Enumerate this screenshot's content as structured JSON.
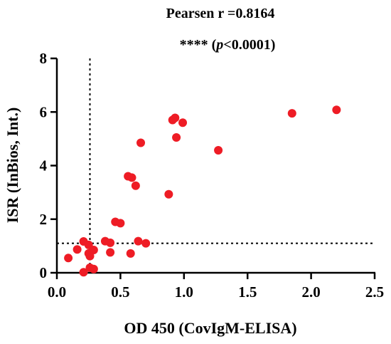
{
  "chart_data": {
    "type": "scatter",
    "title_line1": "Pearsen  r =0.8164",
    "title_line2_stars": "**** (",
    "title_line2_p": "p",
    "title_line2_rest": "<0.0001)",
    "xlabel": "OD 450 (CovIgM-ELISA)",
    "ylabel": "ISR (InBios, Int.)",
    "xlim": [
      0,
      2.5
    ],
    "ylim": [
      0,
      8
    ],
    "xticks": [
      0,
      0.5,
      1,
      1.5,
      2,
      2.5
    ],
    "xtick_labels": [
      "0.0",
      "0.5",
      "1.0",
      "1.5",
      "2.0",
      "2.5"
    ],
    "yticks": [
      0,
      2,
      4,
      6,
      8
    ],
    "ytick_labels": [
      "0",
      "2",
      "4",
      "6",
      "8"
    ],
    "x_cutoff": 0.26,
    "y_cutoff": 1.1,
    "point_color": "#ee1c25",
    "points": [
      {
        "x": 0.09,
        "y": 0.55
      },
      {
        "x": 0.16,
        "y": 0.87
      },
      {
        "x": 0.21,
        "y": 1.17
      },
      {
        "x": 0.21,
        "y": 0.02
      },
      {
        "x": 0.25,
        "y": 1.04
      },
      {
        "x": 0.25,
        "y": 0.72
      },
      {
        "x": 0.26,
        "y": 0.62
      },
      {
        "x": 0.26,
        "y": 0.19
      },
      {
        "x": 0.29,
        "y": 0.85
      },
      {
        "x": 0.29,
        "y": 0.14
      },
      {
        "x": 0.38,
        "y": 1.18
      },
      {
        "x": 0.42,
        "y": 1.12
      },
      {
        "x": 0.42,
        "y": 0.76
      },
      {
        "x": 0.46,
        "y": 1.9
      },
      {
        "x": 0.5,
        "y": 1.85
      },
      {
        "x": 0.56,
        "y": 3.6
      },
      {
        "x": 0.58,
        "y": 0.72
      },
      {
        "x": 0.59,
        "y": 3.55
      },
      {
        "x": 0.62,
        "y": 3.25
      },
      {
        "x": 0.64,
        "y": 1.18
      },
      {
        "x": 0.66,
        "y": 4.85
      },
      {
        "x": 0.7,
        "y": 1.1
      },
      {
        "x": 0.88,
        "y": 2.93
      },
      {
        "x": 0.91,
        "y": 5.7
      },
      {
        "x": 0.93,
        "y": 5.78
      },
      {
        "x": 0.94,
        "y": 5.05
      },
      {
        "x": 0.99,
        "y": 5.6
      },
      {
        "x": 1.27,
        "y": 4.57
      },
      {
        "x": 1.85,
        "y": 5.95
      },
      {
        "x": 2.2,
        "y": 6.08
      }
    ]
  }
}
